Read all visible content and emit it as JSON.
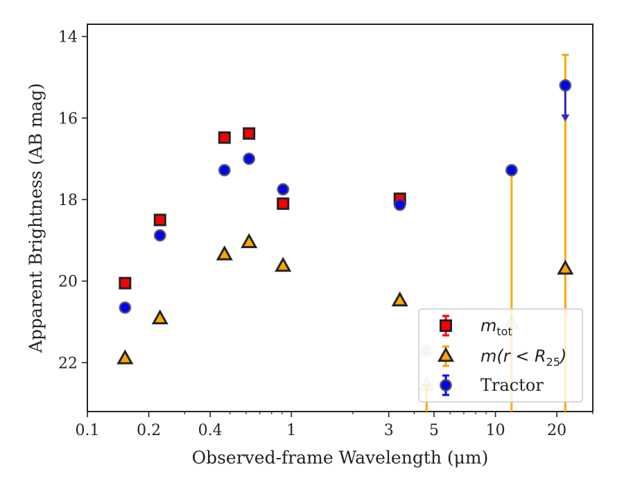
{
  "chart_data": {
    "type": "scatter",
    "xlabel": "Observed-frame Wavelength (μm)",
    "ylabel": "Apparent Brightness (AB mag)",
    "xscale": "log",
    "xlim": [
      0.1,
      30
    ],
    "ylim": [
      23.2,
      13.7
    ],
    "y_inverted": true,
    "x_ticks": [
      0.1,
      0.2,
      0.4,
      1,
      3,
      5,
      10,
      20
    ],
    "x_tick_labels": [
      "0.1",
      "0.2",
      "0.4",
      "1",
      "3",
      "5",
      "10",
      "20"
    ],
    "y_ticks": [
      14,
      16,
      18,
      20,
      22
    ],
    "y_tick_labels": [
      "14",
      "16",
      "18",
      "20",
      "22"
    ],
    "legend_position": "lower-right",
    "series": [
      {
        "name": "m_tot",
        "legend_label": "m",
        "legend_sub": "tot",
        "marker": "square",
        "color": "#ff0000",
        "points": [
          {
            "x": 0.153,
            "y": 20.05
          },
          {
            "x": 0.227,
            "y": 18.5
          },
          {
            "x": 0.47,
            "y": 16.48
          },
          {
            "x": 0.62,
            "y": 16.38
          },
          {
            "x": 0.91,
            "y": 18.1
          },
          {
            "x": 3.4,
            "y": 17.98
          }
        ]
      },
      {
        "name": "m(r < R25)",
        "legend_label": "m(r < R",
        "legend_sub": "25",
        "legend_suffix": ")",
        "marker": "triangle",
        "color": "#ffa500",
        "points": [
          {
            "x": 0.153,
            "y": 21.9
          },
          {
            "x": 0.227,
            "y": 20.92
          },
          {
            "x": 0.47,
            "y": 19.35
          },
          {
            "x": 0.62,
            "y": 19.05
          },
          {
            "x": 0.91,
            "y": 19.63
          },
          {
            "x": 3.4,
            "y": 20.48
          },
          {
            "x": 4.6,
            "y": 22.55,
            "faded": true,
            "err_low": 22.55,
            "err_high": 23.4
          },
          {
            "x": 12.0,
            "y": 21.05,
            "faded": true,
            "err_low": 17.3,
            "err_high": 23.4
          },
          {
            "x": 22.0,
            "y": 19.7,
            "err_low": 14.45,
            "err_high": 23.4
          }
        ]
      },
      {
        "name": "Tractor",
        "legend_label": "Tractor",
        "marker": "circle",
        "color": "#0000ff",
        "points": [
          {
            "x": 0.153,
            "y": 20.65
          },
          {
            "x": 0.227,
            "y": 18.88
          },
          {
            "x": 0.47,
            "y": 17.28
          },
          {
            "x": 0.62,
            "y": 17.0
          },
          {
            "x": 0.91,
            "y": 17.75
          },
          {
            "x": 3.4,
            "y": 18.13
          },
          {
            "x": 4.6,
            "y": 21.7,
            "faded": true
          },
          {
            "x": 12.0,
            "y": 17.28
          },
          {
            "x": 22.0,
            "y": 15.2,
            "upper_limit_to": 16.05
          }
        ]
      }
    ]
  }
}
